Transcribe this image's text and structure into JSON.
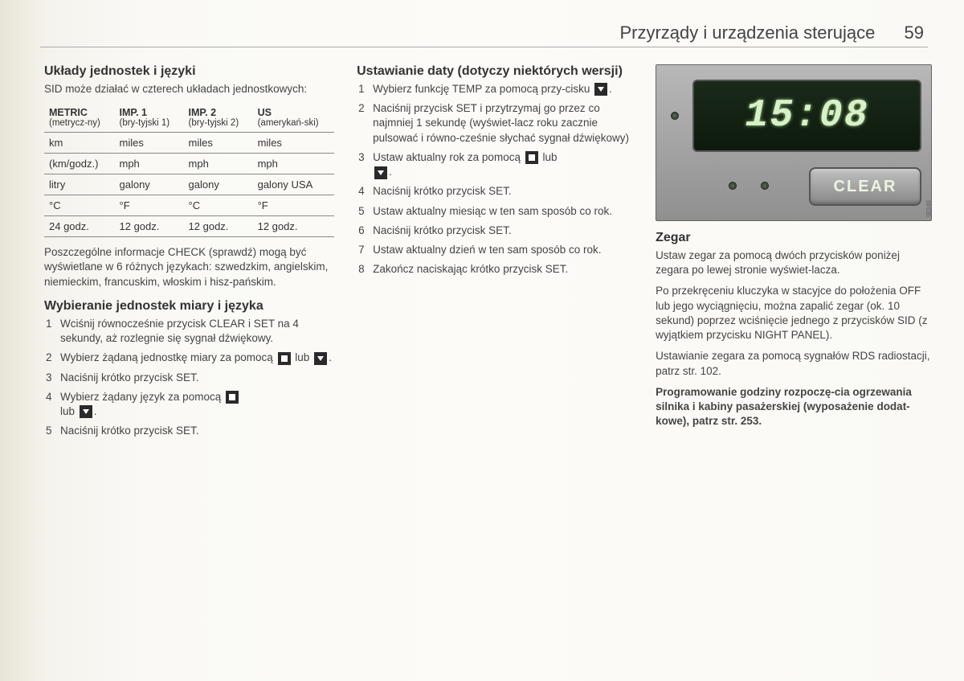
{
  "header": {
    "title": "Przyrządy i urządzenia sterujące",
    "page_number": "59"
  },
  "col1": {
    "h_units": "Układy jednostek i języki",
    "intro": "SID może działać w czterech układach jednostkowych:",
    "table": {
      "headers": [
        {
          "main": "METRIC",
          "sub": "(metrycz-ny)"
        },
        {
          "main": "IMP. 1",
          "sub": "(bry-tyjski 1)"
        },
        {
          "main": "IMP. 2",
          "sub": "(bry-tyjski 2)"
        },
        {
          "main": "US",
          "sub": "(amerykań-ski)"
        }
      ],
      "rows": [
        [
          "km",
          "miles",
          "miles",
          "miles"
        ],
        [
          "(km/godz.)",
          "mph",
          "mph",
          "mph"
        ],
        [
          "litry",
          "galony",
          "galony",
          "galony USA"
        ],
        [
          "°C",
          "°F",
          "°C",
          "°F"
        ],
        [
          "24 godz.",
          "12 godz.",
          "12 godz.",
          "12 godz."
        ]
      ]
    },
    "check_note": "Poszczególne informacje CHECK (sprawdź) mogą być wyświetlane w 6 różnych językach: szwedzkim, angielskim, niemieckim, francuskim, włoskim i hisz-pańskim.",
    "h_select": "Wybieranie jednostek miary i języka",
    "select_steps": [
      "Wciśnij równocześnie przycisk CLEAR i SET na 4 sekundy, aż rozlegnie się sygnał dźwiękowy.",
      "Wybierz żądaną jednostkę miary za pomocą",
      "Naciśnij krótko przycisk SET.",
      "Wybierz żądany język za pomocą",
      "Naciśnij krótko przycisk SET."
    ],
    "lub": "lub",
    "period": "."
  },
  "col2": {
    "h_date": "Ustawianie daty (dotyczy niektórych wersji)",
    "date_steps": {
      "s1a": "Wybierz funkcję TEMP za pomocą przy-cisku",
      "s2": "Naciśnij przycisk SET i przytrzymaj go przez co najmniej 1 sekundę (wyświet-lacz roku zacznie pulsować i równo-cześnie słychać sygnał dźwiękowy)",
      "s3a": "Ustaw aktualny rok za pomocą",
      "s4": "Naciśnij krótko przycisk SET.",
      "s5": "Ustaw aktualny miesiąc w ten sam sposób co rok.",
      "s6": "Naciśnij krótko przycisk SET.",
      "s7": "Ustaw aktualny dzień w ten sam sposób co rok.",
      "s8": "Zakończ naciskając krótko przycisk SET."
    }
  },
  "col3": {
    "clock": {
      "time": "15:08",
      "clear_label": "CLEAR",
      "ib": "IB348"
    },
    "h_clock": "Zegar",
    "p1": "Ustaw zegar za pomocą dwóch przycisków poniżej zegara po lewej stronie wyświet-lacza.",
    "p2": "Po przekręceniu kluczyka w stacyjce do położenia OFF lub jego wyciągnięciu, można zapalić zegar (ok. 10 sekund) poprzez wciśnięcie jednego z przycisków SID (z wyjątkiem przycisku NIGHT PANEL).",
    "p3": "Ustawianie zegara za pomocą sygnałów RDS radiostacji, patrz str. 102.",
    "p4": "Programowanie godziny rozpoczę-cia ogrzewania silnika i kabiny pasażerskiej (wyposażenie dodat-kowe), patrz str. 253."
  }
}
